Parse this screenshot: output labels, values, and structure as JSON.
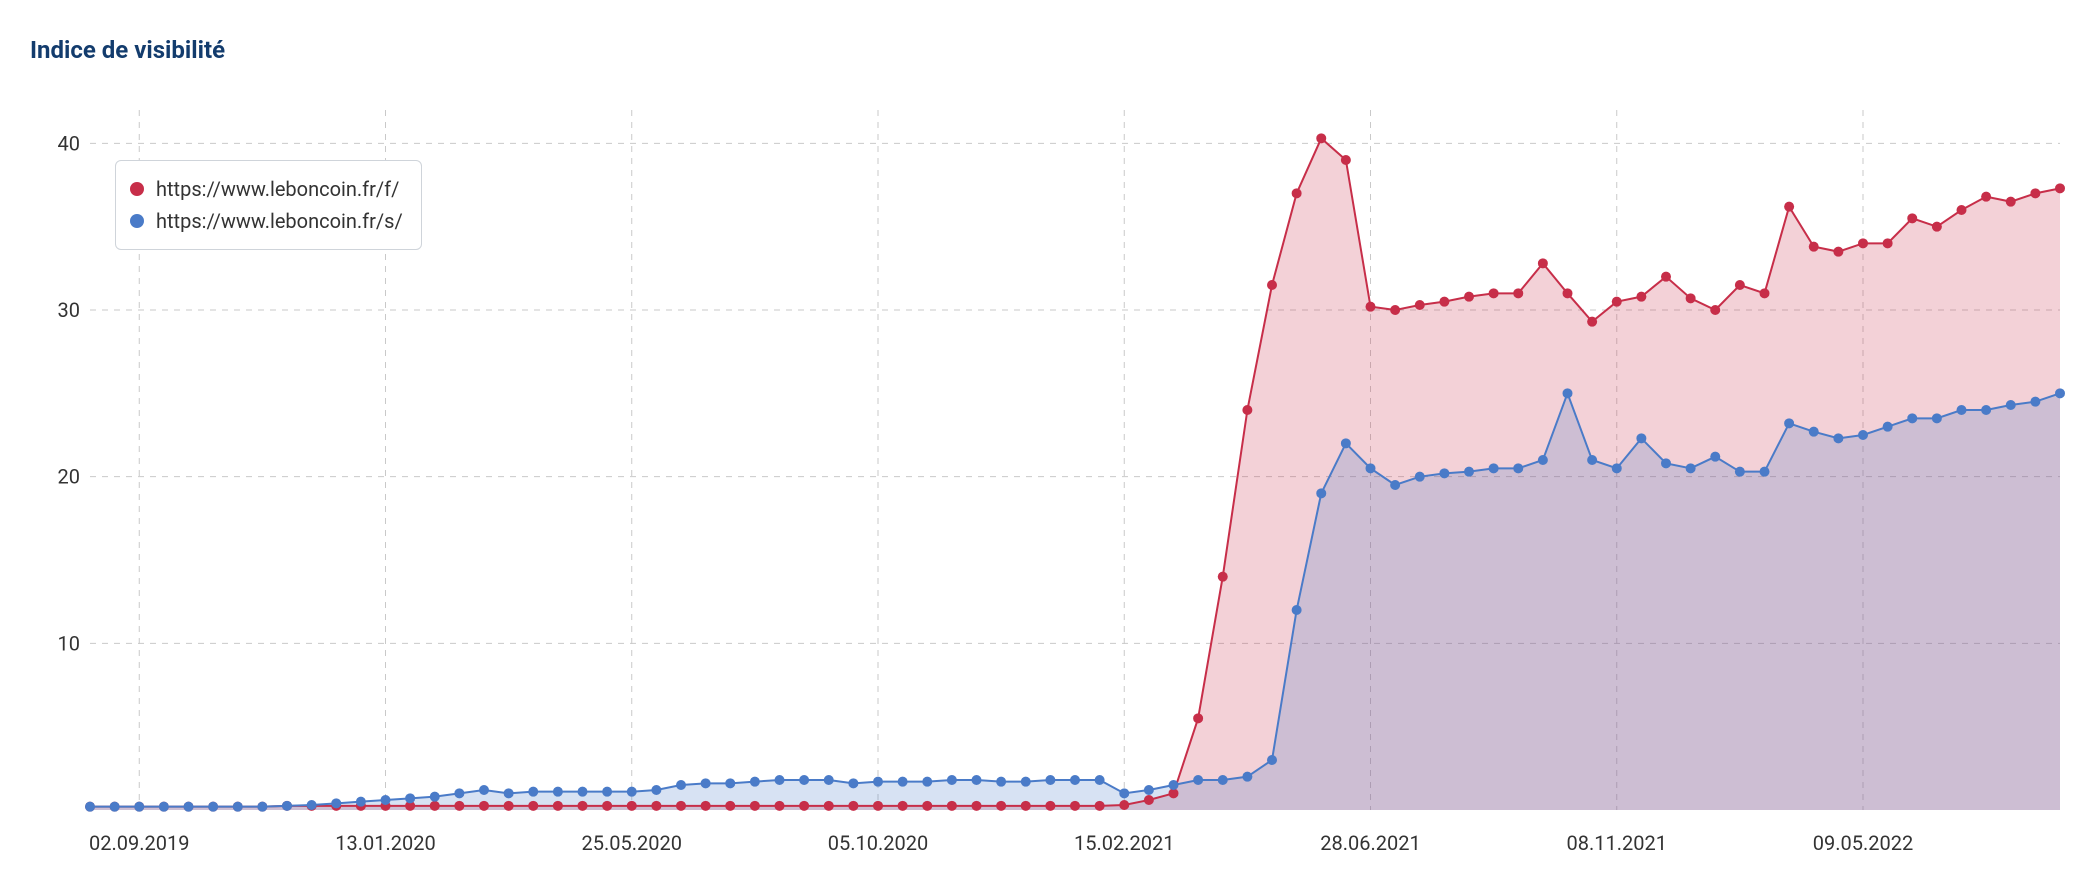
{
  "chart": {
    "type": "line",
    "title": "Indice de visibilité",
    "title_color": "#133c6d",
    "title_fontsize": 24,
    "title_fontweight": 700,
    "background_color": "#ffffff",
    "grid_color": "#c9c9c9",
    "grid_dasharray": "6 6",
    "axis_label_color": "#333333",
    "axis_label_fontsize": 20,
    "ylim": [
      0,
      42
    ],
    "yticks": [
      10,
      20,
      30,
      40
    ],
    "ytick_labels": [
      "10",
      "20",
      "30",
      "40"
    ],
    "xtick_indices": [
      2,
      12,
      22,
      32,
      42,
      52,
      62,
      72
    ],
    "xtick_labels": [
      "02.09.2019",
      "13.01.2020",
      "25.05.2020",
      "05.10.2020",
      "15.02.2021",
      "28.06.2021",
      "08.11.2021",
      "09.05.2022"
    ],
    "legend_position": "top-left",
    "line_width": 2,
    "marker_radius": 5,
    "fill_opacity": 0.22,
    "series": [
      {
        "name": "https://www.leboncoin.fr/f/",
        "stroke_color": "#c72e49",
        "marker_color": "#c72e49",
        "fill_color": "#c72e49",
        "values": [
          0.2,
          0.2,
          0.2,
          0.2,
          0.2,
          0.2,
          0.2,
          0.2,
          0.25,
          0.25,
          0.25,
          0.25,
          0.25,
          0.25,
          0.25,
          0.25,
          0.25,
          0.25,
          0.25,
          0.25,
          0.25,
          0.25,
          0.25,
          0.25,
          0.25,
          0.25,
          0.25,
          0.25,
          0.25,
          0.25,
          0.25,
          0.25,
          0.25,
          0.25,
          0.25,
          0.25,
          0.25,
          0.25,
          0.25,
          0.25,
          0.25,
          0.25,
          0.3,
          0.6,
          1.0,
          5.5,
          14.0,
          24.0,
          31.5,
          37.0,
          40.3,
          39.0,
          30.2,
          30.0,
          30.3,
          30.5,
          30.8,
          31.0,
          31.0,
          32.8,
          31.0,
          29.3,
          30.5,
          30.8,
          32.0,
          30.7,
          30.0,
          31.5,
          31.0,
          36.2,
          33.8,
          33.5,
          34.0,
          34.0,
          35.5,
          35.0,
          36.0,
          36.8,
          36.5,
          37.0,
          37.3
        ]
      },
      {
        "name": "https://www.leboncoin.fr/s/",
        "stroke_color": "#4a7bc8",
        "marker_color": "#4a7bc8",
        "fill_color": "#4a7bc8",
        "values": [
          0.2,
          0.2,
          0.2,
          0.2,
          0.2,
          0.2,
          0.2,
          0.2,
          0.25,
          0.3,
          0.4,
          0.5,
          0.6,
          0.7,
          0.8,
          1.0,
          1.2,
          1.0,
          1.1,
          1.1,
          1.1,
          1.1,
          1.1,
          1.2,
          1.5,
          1.6,
          1.6,
          1.7,
          1.8,
          1.8,
          1.8,
          1.6,
          1.7,
          1.7,
          1.7,
          1.8,
          1.8,
          1.7,
          1.7,
          1.8,
          1.8,
          1.8,
          1.0,
          1.2,
          1.5,
          1.8,
          1.8,
          2.0,
          3.0,
          12.0,
          19.0,
          22.0,
          20.5,
          19.5,
          20.0,
          20.2,
          20.3,
          20.5,
          20.5,
          21.0,
          25.0,
          21.0,
          20.5,
          22.3,
          20.8,
          20.5,
          21.2,
          20.3,
          20.3,
          23.2,
          22.7,
          22.3,
          22.5,
          23.0,
          23.5,
          23.5,
          24.0,
          24.0,
          24.3,
          24.5,
          25.0
        ]
      }
    ]
  }
}
